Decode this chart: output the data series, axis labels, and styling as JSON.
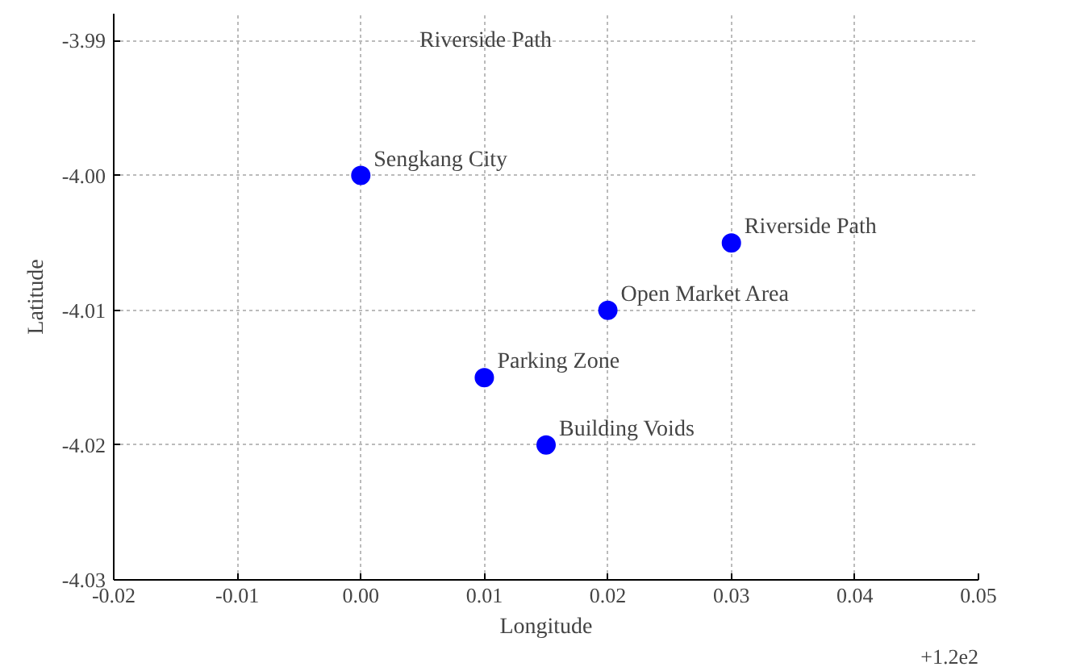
{
  "chart_data": {
    "type": "scatter",
    "xlabel": "Longitude",
    "ylabel": "Latitude",
    "x": [
      0.0,
      0.03,
      0.02,
      0.01,
      0.015
    ],
    "values": [
      -4.0,
      -4.005,
      -4.01,
      -4.015,
      -4.02
    ],
    "color": "#0000ff",
    "marker": "circle",
    "grid": true,
    "xlim": [
      -0.02,
      0.05
    ],
    "xticks": [
      -0.02,
      -0.01,
      {
        "value": 0.0,
        "label": "0.00"
      },
      0.01,
      0.02,
      0.03,
      0.04,
      0.05
    ],
    "ylim": [
      -4.03,
      -3.988
    ],
    "yticks": [
      {
        "value": -4.03,
        "label": "-4.03"
      },
      {
        "value": -4.02,
        "label": "-4.02"
      },
      {
        "value": -4.01,
        "label": "-4.01"
      },
      {
        "value": -4.0,
        "label": "-4.00"
      },
      {
        "value": -3.99,
        "label": "-3.99"
      }
    ],
    "annotations": [
      {
        "text": "Sengkang City",
        "x": 0.0,
        "y": -4.0
      },
      {
        "text": "Riverside Path",
        "x": 0.03,
        "y": -4.005
      },
      {
        "text": "Open Market Area",
        "x": 0.02,
        "y": -4.01
      },
      {
        "text": "Parking Zone",
        "x": 0.01,
        "y": -4.015
      },
      {
        "text": "Building Voids",
        "x": 0.015,
        "y": -4.02
      },
      "Riverside Path",
      "+1.2e2"
    ]
  }
}
